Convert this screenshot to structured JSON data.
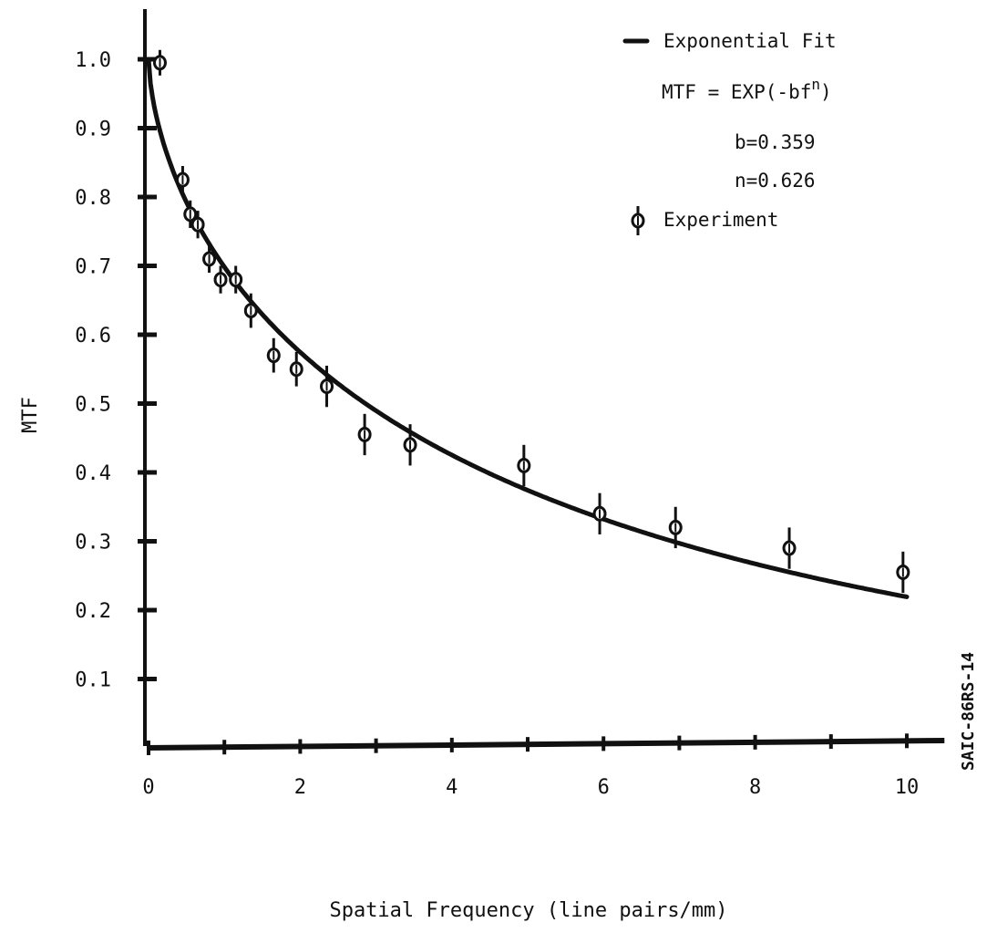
{
  "chart_data": {
    "type": "scatter",
    "title": "",
    "xlabel": "Spatial Frequency (line pairs/mm)",
    "ylabel": "MTF",
    "xlim": [
      0,
      10.4
    ],
    "ylim": [
      0,
      1.0
    ],
    "x_ticks": [
      0,
      2,
      4,
      6,
      8,
      10
    ],
    "x_tick_labels": [
      "0",
      "2",
      "4",
      "6",
      "8",
      "10"
    ],
    "x_minor_ticks": [
      1,
      3,
      5,
      7,
      9
    ],
    "y_ticks": [
      0.1,
      0.2,
      0.3,
      0.4,
      0.5,
      0.6,
      0.7,
      0.8,
      0.9,
      1.0
    ],
    "y_tick_labels": [
      "0.1",
      "0.2",
      "0.3",
      "0.4",
      "0.5",
      "0.6",
      "0.7",
      "0.8",
      "0.9",
      "1.0"
    ],
    "grid": false,
    "legend_placement": "top-right",
    "legend": {
      "fit_label": "Exponential Fit",
      "equation_prefix": "MTF = EXP(-bf",
      "equation_exponent": "n",
      "equation_suffix": ")",
      "b_label": "b=0.359",
      "n_label": "n=0.626",
      "experiment_label": "Experiment"
    },
    "fit": {
      "b": 0.359,
      "n": 0.626
    },
    "series": [
      {
        "kind": "points_with_error_bars",
        "points": [
          {
            "x": 0.15,
            "y": 0.995,
            "err": 0.015
          },
          {
            "x": 0.45,
            "y": 0.825,
            "err": 0.02
          },
          {
            "x": 0.55,
            "y": 0.775,
            "err": 0.02
          },
          {
            "x": 0.65,
            "y": 0.76,
            "err": 0.02
          },
          {
            "x": 0.8,
            "y": 0.71,
            "err": 0.02
          },
          {
            "x": 0.95,
            "y": 0.68,
            "err": 0.02
          },
          {
            "x": 1.15,
            "y": 0.68,
            "err": 0.02
          },
          {
            "x": 1.35,
            "y": 0.635,
            "err": 0.025
          },
          {
            "x": 1.65,
            "y": 0.57,
            "err": 0.025
          },
          {
            "x": 1.95,
            "y": 0.55,
            "err": 0.025
          },
          {
            "x": 2.35,
            "y": 0.525,
            "err": 0.03
          },
          {
            "x": 2.85,
            "y": 0.455,
            "err": 0.03
          },
          {
            "x": 3.45,
            "y": 0.44,
            "err": 0.03
          },
          {
            "x": 4.95,
            "y": 0.41,
            "err": 0.03
          },
          {
            "x": 5.95,
            "y": 0.34,
            "err": 0.03
          },
          {
            "x": 6.95,
            "y": 0.32,
            "err": 0.03
          },
          {
            "x": 8.45,
            "y": 0.29,
            "err": 0.03
          },
          {
            "x": 9.95,
            "y": 0.255,
            "err": 0.03
          }
        ]
      }
    ],
    "side_code": "SAIC-86RS-14"
  }
}
